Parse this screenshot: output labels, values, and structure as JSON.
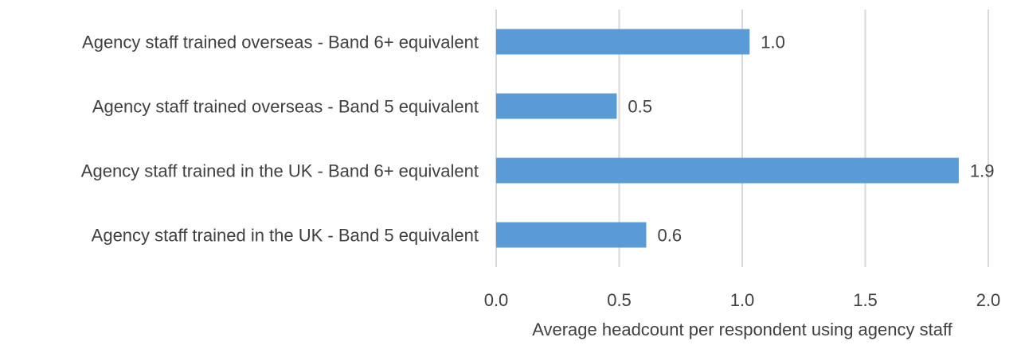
{
  "chart_data": {
    "type": "bar",
    "orientation": "horizontal",
    "categories": [
      "Agency staff trained overseas - Band 6+ equivalent",
      "Agency staff trained overseas - Band 5 equivalent",
      "Agency staff trained in the UK - Band 6+ equivalent",
      "Agency staff trained in the UK - Band 5 equivalent"
    ],
    "values": [
      1.03,
      0.49,
      1.88,
      0.61
    ],
    "data_labels": [
      "1.0",
      "0.5",
      "1.9",
      "0.6"
    ],
    "xticks": [
      0.0,
      0.5,
      1.0,
      1.5,
      2.0
    ],
    "xtick_labels": [
      "0.0",
      "0.5",
      "1.0",
      "1.5",
      "2.0"
    ],
    "xlim": [
      0,
      2.0
    ],
    "xlabel": "Average headcount per respondent using agency staff",
    "ylabel": "",
    "title": "",
    "grid": "vertical",
    "legend": "none",
    "bar_color": "#5b9bd5",
    "grid_color": "#d9d9d9",
    "text_color": "#404040"
  }
}
